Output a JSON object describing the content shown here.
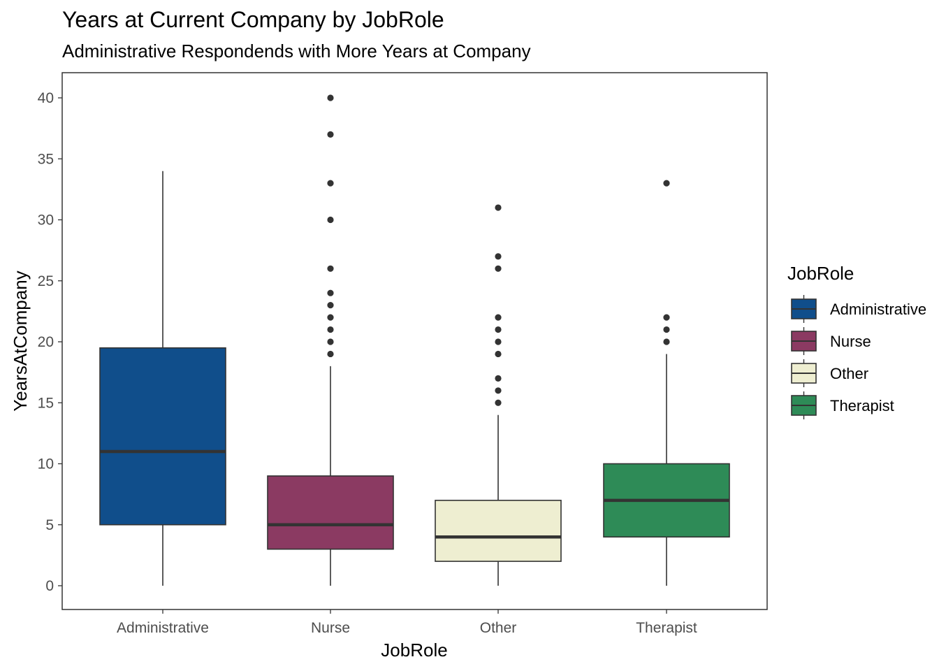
{
  "chart_data": {
    "type": "boxplot",
    "title": "Years at Current Company by JobRole",
    "subtitle": "Administrative Respondends with More Years at Company",
    "xlabel": "JobRole",
    "ylabel": "YearsAtCompany",
    "ylim": [
      -2,
      42
    ],
    "yticks": [
      0,
      5,
      10,
      15,
      20,
      25,
      30,
      35,
      40
    ],
    "categories": [
      "Administrative",
      "Nurse",
      "Other",
      "Therapist"
    ],
    "legend": {
      "title": "JobRole",
      "position": "right"
    },
    "grid": false,
    "series": [
      {
        "name": "Administrative",
        "color": "#104E8B",
        "min": 0,
        "q1": 5,
        "median": 11,
        "q3": 19.5,
        "max": 34,
        "outliers": []
      },
      {
        "name": "Nurse",
        "color": "#8B3A62",
        "min": 0,
        "q1": 3,
        "median": 5,
        "q3": 9,
        "max": 18,
        "outliers": [
          19,
          20,
          21,
          22,
          23,
          24,
          26,
          30,
          33,
          37,
          40
        ]
      },
      {
        "name": "Other",
        "color": "#EEEED1",
        "min": 0,
        "q1": 2,
        "median": 4,
        "q3": 7,
        "max": 14,
        "outliers": [
          15,
          16,
          17,
          19,
          20,
          21,
          22,
          26,
          27,
          31
        ]
      },
      {
        "name": "Therapist",
        "color": "#2E8B57",
        "min": 0,
        "q1": 4,
        "median": 7,
        "q3": 10,
        "max": 19,
        "outliers": [
          20,
          21,
          22,
          33
        ]
      }
    ]
  }
}
